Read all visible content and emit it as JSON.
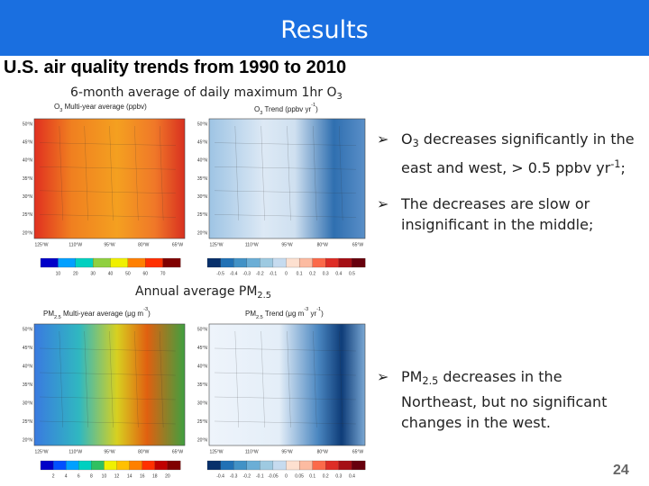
{
  "header": {
    "title": "Results"
  },
  "subtitle": "U.S. air quality trends from 1990 to 2010",
  "sections": [
    {
      "caption": [
        "6-month average of daily maximum 1hr O",
        "3"
      ]
    },
    {
      "caption": [
        "Annual average PM",
        "2.5"
      ]
    }
  ],
  "maps": [
    {
      "title": [
        "O",
        "3",
        " Multi-year average (ppbv)"
      ],
      "colorbar": [
        "10",
        "20",
        "30",
        "40",
        "50",
        "60",
        "70"
      ]
    },
    {
      "title": [
        "O",
        "3",
        " Trend (ppbv yr",
        "-1",
        ")"
      ],
      "colorbar": [
        "-0.5",
        "-0.4",
        "-0.3",
        "-0.2",
        "-0.1",
        "0",
        "0.1",
        "0.2",
        "0.3",
        "0.4",
        "0.5"
      ]
    },
    {
      "title": [
        "PM",
        "2.5",
        " Multi-year average (μg m",
        "-3",
        ")"
      ],
      "colorbar": [
        "2",
        "4",
        "6",
        "8",
        "10",
        "12",
        "14",
        "16",
        "18",
        "20"
      ]
    },
    {
      "title": [
        "PM",
        "2.5",
        " Trend (μg m",
        "-3",
        " yr",
        "-1",
        ")"
      ],
      "colorbar": [
        "-0.4",
        "-0.3",
        "-0.2",
        "-0.1",
        "-0.05",
        "0",
        "0.05",
        "0.1",
        "0.2",
        "0.3",
        "0.4"
      ]
    }
  ],
  "map_axes": {
    "lat": [
      "50°N",
      "45°N",
      "40°N",
      "35°N",
      "30°N",
      "25°N",
      "20°N"
    ],
    "lon": [
      "125°W",
      "110°W",
      "95°W",
      "80°W",
      "65°W"
    ]
  },
  "bullets": [
    [
      "O",
      "3",
      " decreases significantly in the east and west, > 0.5 ppbv yr",
      "-1",
      ";"
    ],
    [
      "The decreases are slow or insignificant in the middle;"
    ],
    [
      "PM",
      "2.5",
      " decreases in the Northeast, but no significant changes in the west."
    ]
  ],
  "page_number": "24"
}
